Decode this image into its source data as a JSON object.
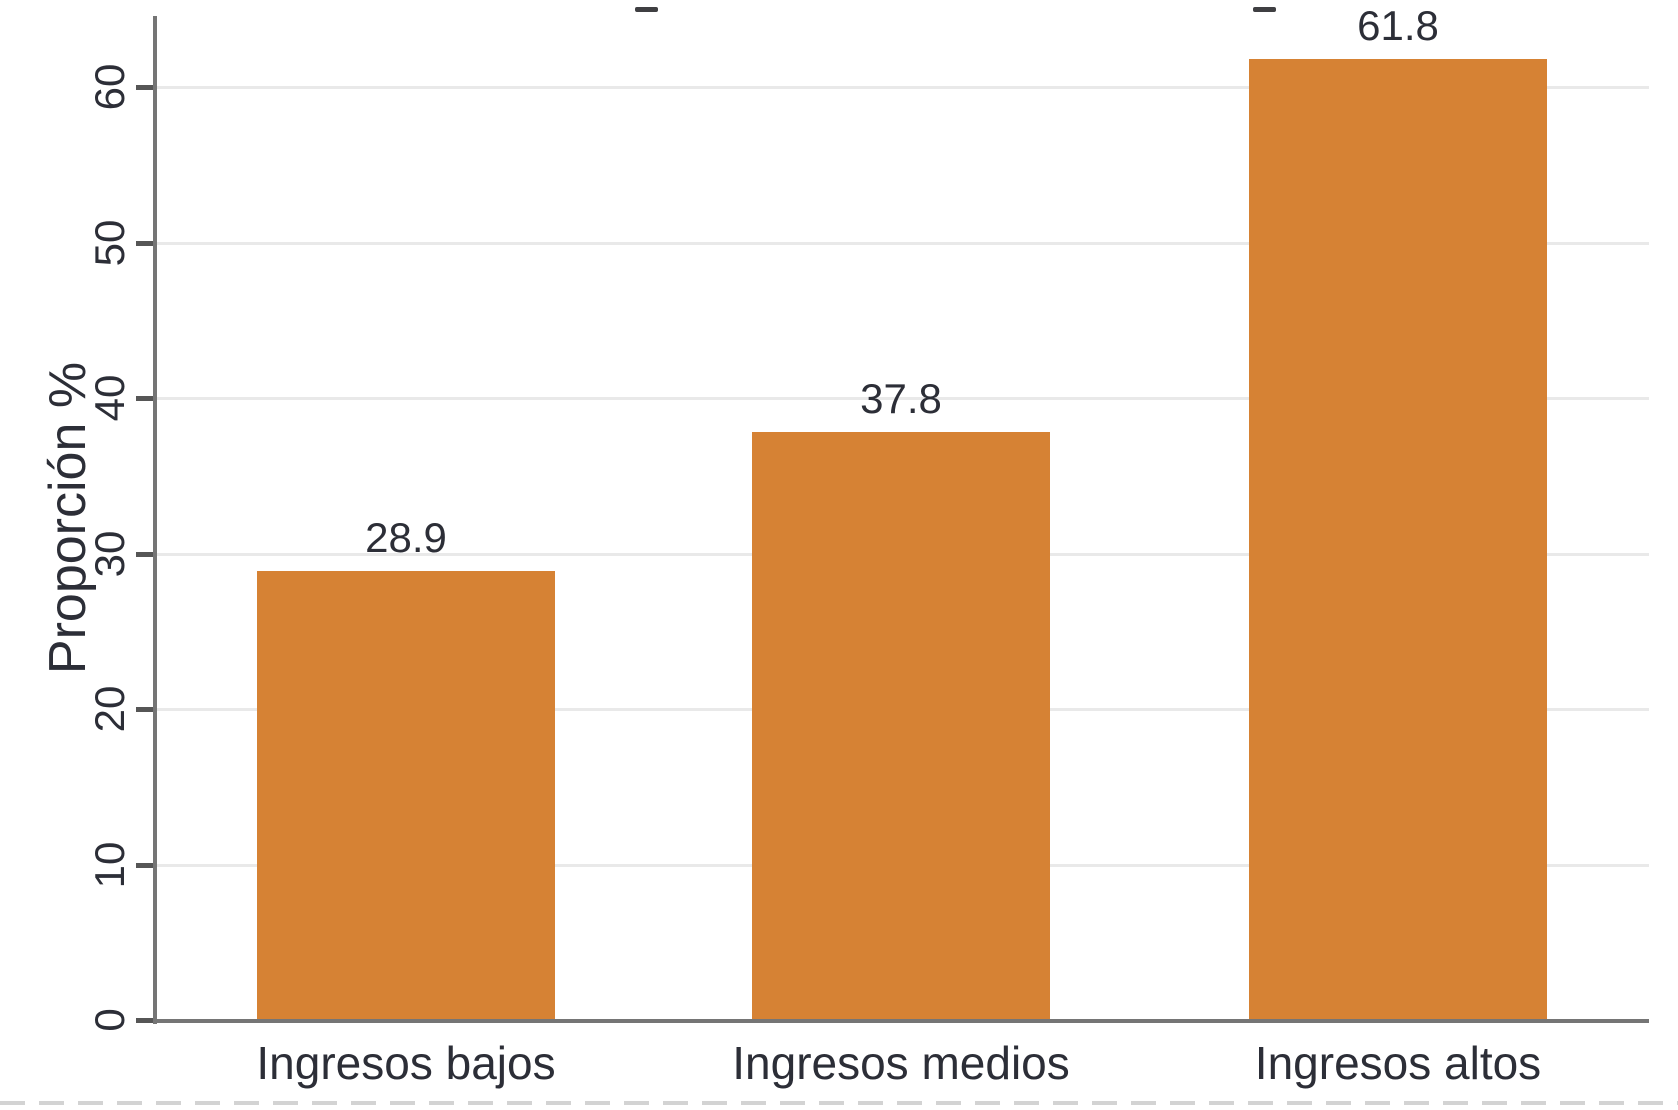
{
  "chart_data": {
    "type": "bar",
    "title": "",
    "categories": [
      "Ingresos bajos",
      "Ingresos medios",
      "Ingresos altos"
    ],
    "values": [
      28.9,
      37.8,
      61.8
    ],
    "value_labels": [
      "28.9",
      "37.8",
      "61.8"
    ],
    "series": [
      {
        "name": "Proporción",
        "values": [
          28.9,
          37.8,
          61.8
        ]
      }
    ],
    "xlabel": "",
    "ylabel": "Proporción %",
    "yticks": [
      0,
      10,
      20,
      30,
      40,
      50,
      60
    ],
    "ytick_labels": [
      "0",
      "10",
      "20",
      "30",
      "40",
      "50",
      "60"
    ],
    "ylim": [
      0,
      64.6
    ],
    "grid": "horizontal-light",
    "legend": "none",
    "bar_color": "#d68234",
    "grid_color": "#e9e9e9",
    "axis_color": "#757575",
    "tick_color": "#565656",
    "text_color": "#2c2e37"
  }
}
